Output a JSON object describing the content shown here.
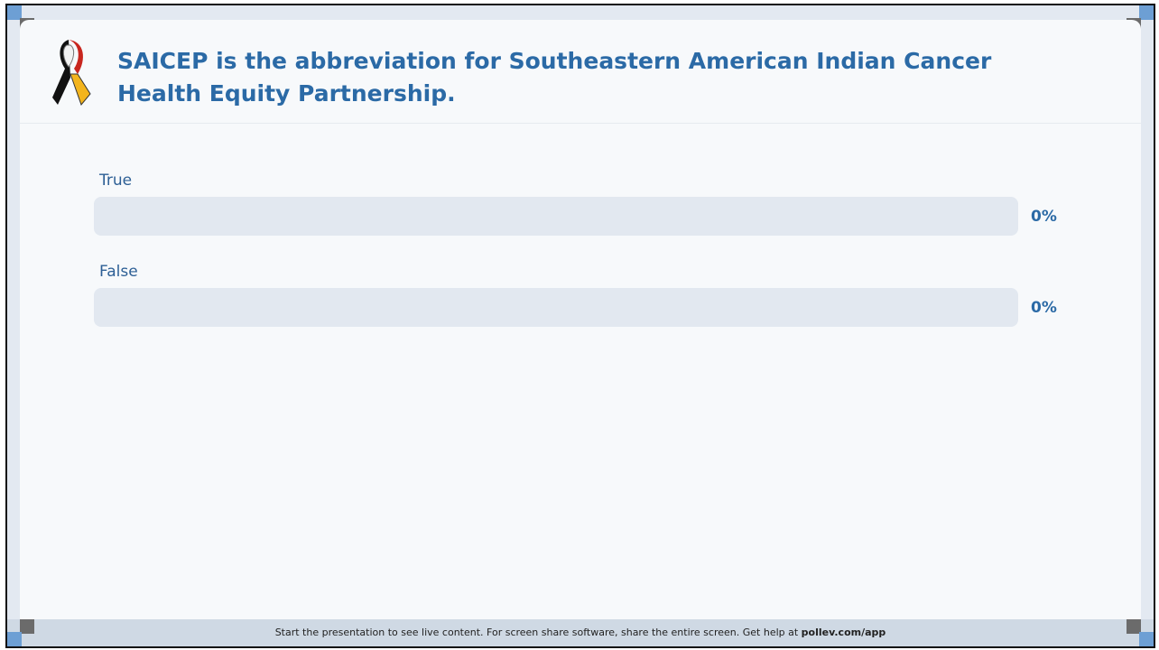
{
  "question": "SAICEP is the abbreviation for Southeastern American Indian Cancer Health Equity Partnership.",
  "options": [
    {
      "label": "True",
      "value": 0,
      "value_label": "0%"
    },
    {
      "label": "False",
      "value": 0,
      "value_label": "0%"
    }
  ],
  "footer": {
    "text": "Start the presentation to see live content. For screen share software, share the entire screen. Get help at",
    "link": "pollev.com/app"
  }
}
